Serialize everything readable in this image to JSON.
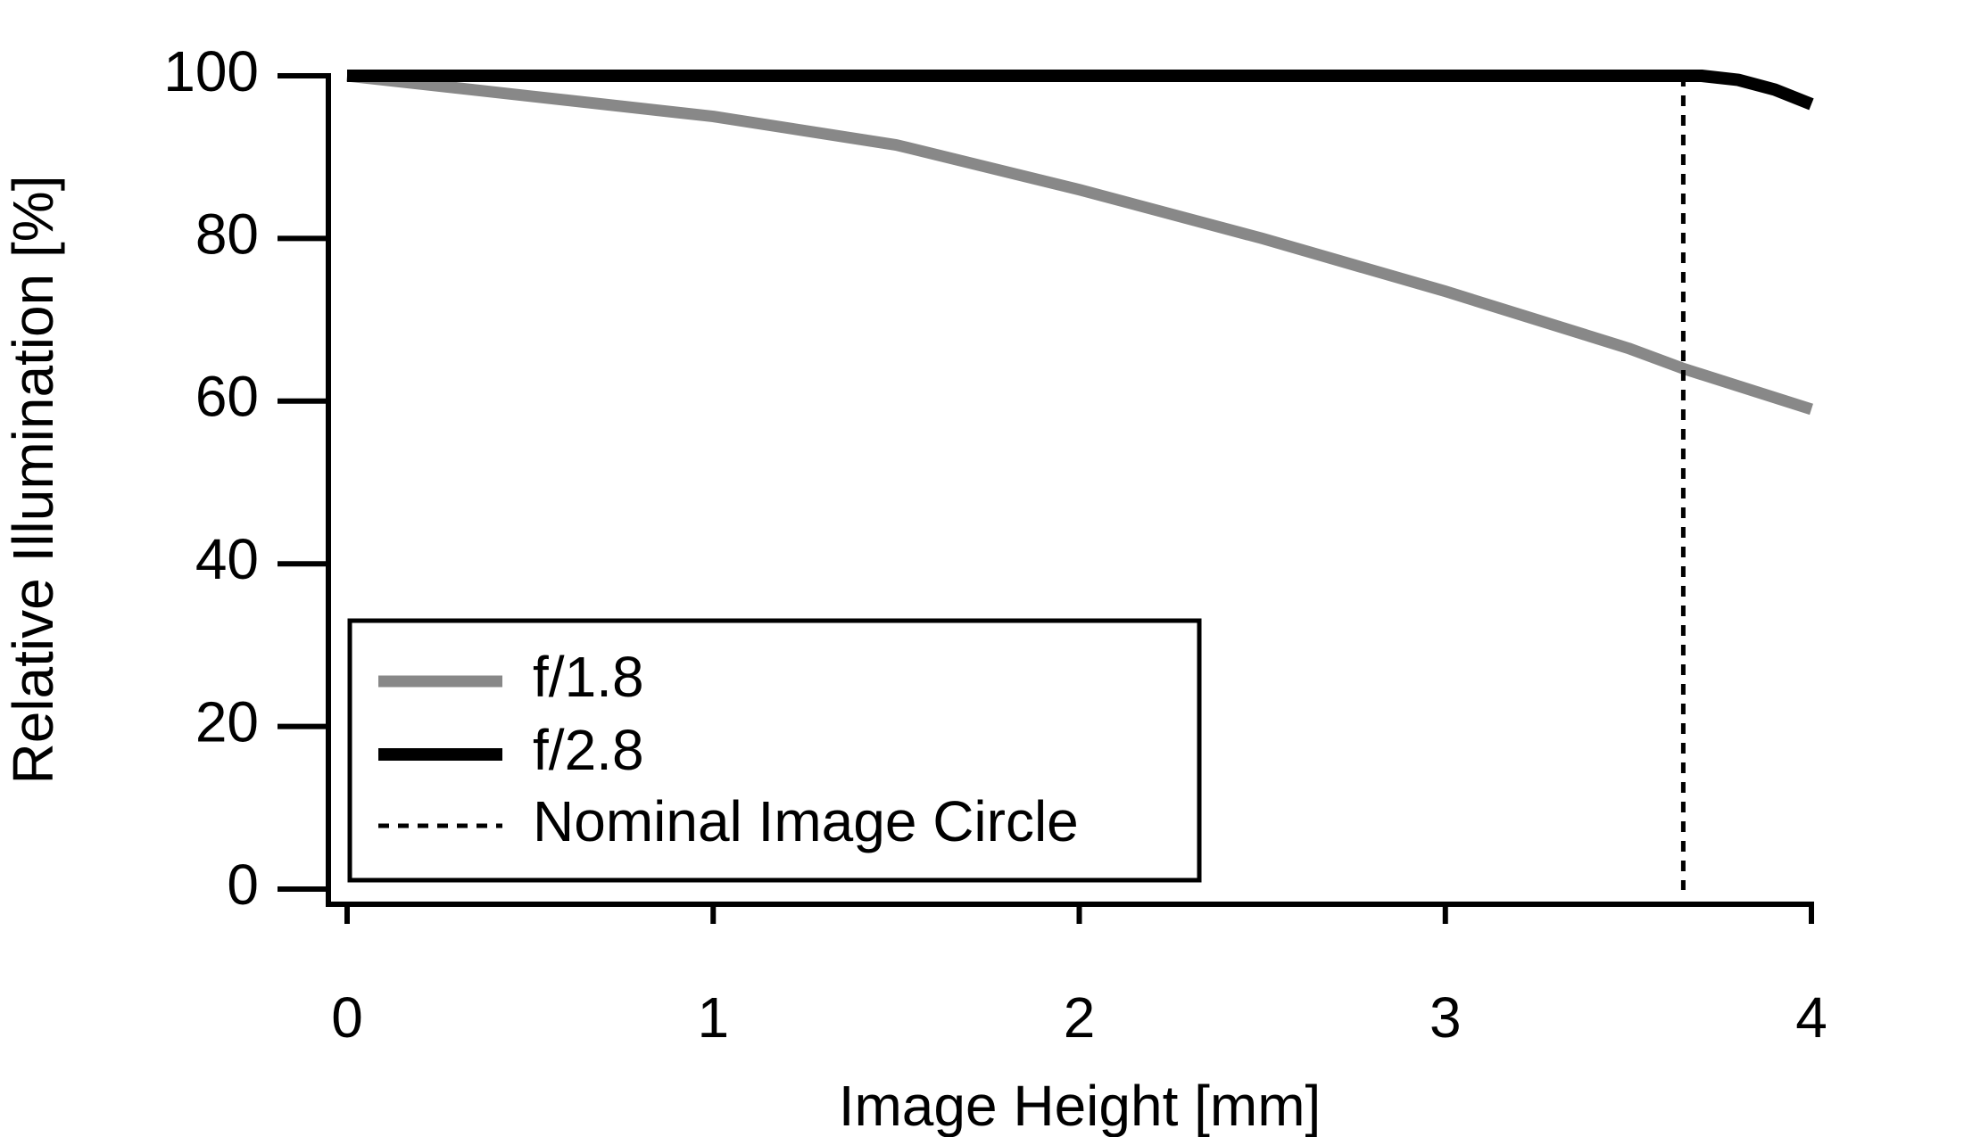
{
  "chart_data": {
    "type": "line",
    "xlabel": "Image Height [mm]",
    "ylabel": "Relative Illumination [%]",
    "xlim": [
      0,
      4
    ],
    "xticks": [
      0,
      1,
      2,
      3,
      4
    ],
    "ylim": [
      0,
      100
    ],
    "yticks": [
      0,
      20,
      40,
      60,
      80,
      100
    ],
    "series": [
      {
        "name": "f/1.8",
        "color": "#888888",
        "x": [
          0,
          0.5,
          1,
          1.5,
          2,
          2.5,
          3,
          3.5,
          3.65,
          4
        ],
        "values": [
          100,
          97.5,
          95,
          91.5,
          86,
          80,
          73.5,
          66.5,
          64,
          59
        ]
      },
      {
        "name": "f/2.8",
        "color": "#000000",
        "x": [
          0,
          1,
          2,
          3,
          3.7,
          3.8,
          3.9,
          4
        ],
        "values": [
          100,
          100,
          100,
          100,
          100,
          99.5,
          98.3,
          96.5
        ]
      }
    ],
    "vline": {
      "name": "Nominal Image Circle",
      "x": 3.65,
      "color": "#000000"
    },
    "legend": "lower left"
  }
}
